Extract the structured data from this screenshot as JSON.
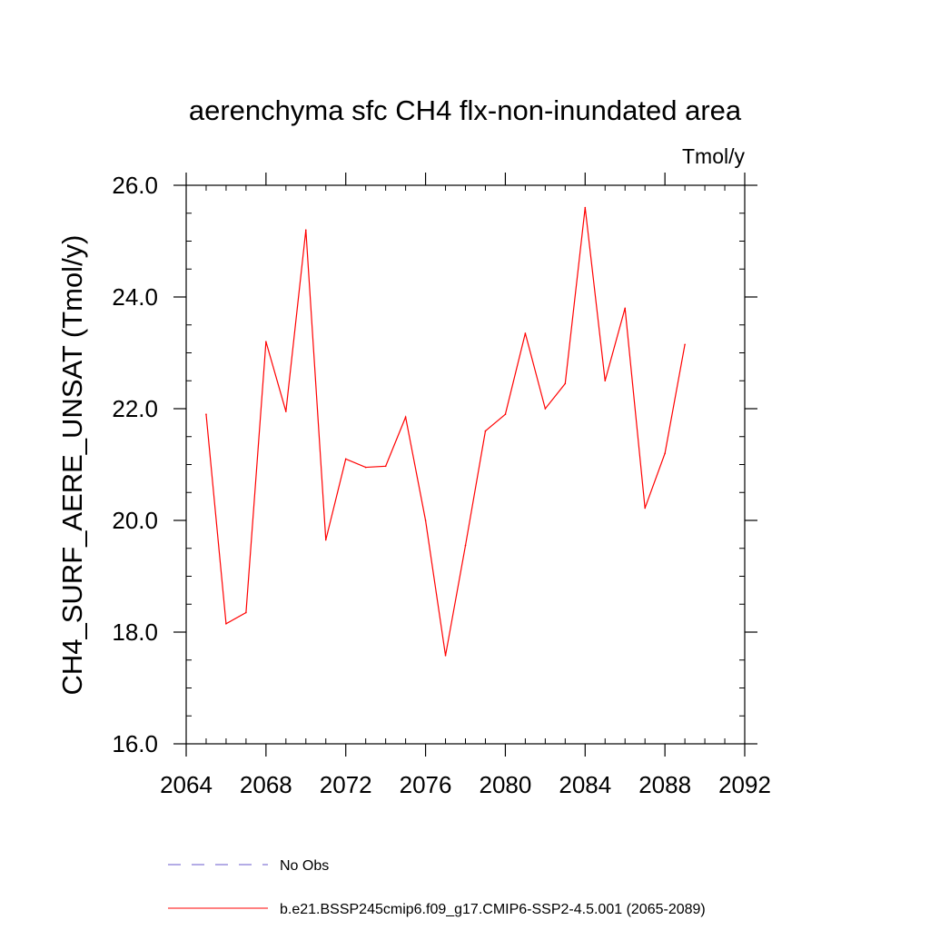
{
  "chart_data": {
    "type": "line",
    "title": "aerenchyma sfc CH4 flx-non-inundated area",
    "units": "Tmol/y",
    "ylabel": "CH4_SURF_AERE_UNSAT  (Tmol/y)",
    "xlabel": "",
    "xlim": [
      2064,
      2092
    ],
    "ylim": [
      16.0,
      26.0
    ],
    "x_ticks": [
      2064,
      2068,
      2072,
      2076,
      2080,
      2084,
      2088,
      2092
    ],
    "x_tick_labels": [
      "2064",
      "2068",
      "2072",
      "2076",
      "2080",
      "2084",
      "2088",
      "2092"
    ],
    "y_ticks": [
      16,
      18,
      20,
      22,
      24,
      26
    ],
    "y_tick_labels": [
      "16.0",
      "18.0",
      "20.0",
      "22.0",
      "24.0",
      "26.0"
    ],
    "x_minor_step": 1,
    "y_minor_step": 0.5,
    "grid": false,
    "legend_position": "bottom",
    "series": [
      {
        "name": "b.e21.BSSP245cmip6.f09_g17.CMIP6-SSP2-4.5.001 (2065-2089)",
        "color": "#ff0000",
        "style": "solid",
        "x": [
          2065,
          2066,
          2067,
          2068,
          2069,
          2070,
          2071,
          2072,
          2073,
          2074,
          2075,
          2076,
          2077,
          2078,
          2079,
          2080,
          2081,
          2082,
          2083,
          2084,
          2085,
          2086,
          2087,
          2088,
          2089
        ],
        "y": [
          21.9,
          18.15,
          18.35,
          23.2,
          21.95,
          25.2,
          19.65,
          21.1,
          20.95,
          20.97,
          21.85,
          20.0,
          17.58,
          19.55,
          21.6,
          21.9,
          23.35,
          22.0,
          22.45,
          25.6,
          22.5,
          23.8,
          20.22,
          21.2,
          23.15
        ]
      }
    ],
    "legend": [
      {
        "label": "No Obs",
        "color": "#6a5acd",
        "style": "dashed"
      },
      {
        "label": "b.e21.BSSP245cmip6.f09_g17.CMIP6-SSP2-4.5.001 (2065-2089)",
        "color": "#ff0000",
        "style": "solid"
      }
    ]
  }
}
